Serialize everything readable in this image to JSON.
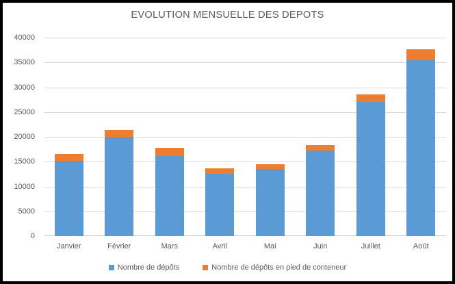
{
  "window": {
    "background_color": "#ffffff",
    "frame_color": "#000000",
    "text_color": "#595959",
    "gridline_color": "#d9d9d9"
  },
  "chart_data": {
    "type": "bar",
    "stacked": true,
    "title": "EVOLUTION MENSUELLE DES DEPOTS",
    "categories": [
      "Janvier",
      "Février",
      "Mars",
      "Avril",
      "Mai",
      "Juin",
      "Juillet",
      "Août"
    ],
    "series": [
      {
        "name": "Nombre de dépôts",
        "color": "#5b9bd5",
        "values": [
          15200,
          20000,
          16200,
          12600,
          13500,
          17200,
          27000,
          35400
        ]
      },
      {
        "name": "Nombre de dépôts en pied de conteneur",
        "color": "#ed7d31",
        "values": [
          1400,
          1400,
          1600,
          1000,
          1000,
          1200,
          1600,
          2200
        ]
      }
    ],
    "totals": [
      16600,
      21400,
      17800,
      13600,
      14500,
      18400,
      28600,
      37600
    ],
    "xlabel": "",
    "ylabel": "",
    "ylim": [
      0,
      40000
    ],
    "ytick_step": 5000,
    "ytick_labels": [
      "0",
      "5000",
      "10000",
      "15000",
      "20000",
      "25000",
      "30000",
      "35000",
      "40000"
    ],
    "grid": "horizontal",
    "legend_position": "bottom"
  }
}
